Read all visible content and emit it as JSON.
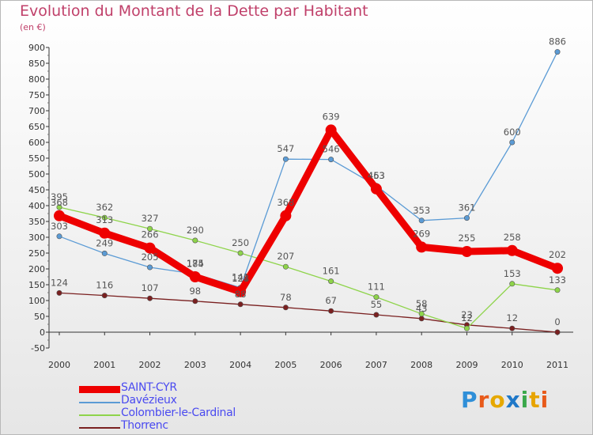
{
  "header": {
    "title": "Evolution du Montant de la Dette par Habitant",
    "subtitle": "(en €)"
  },
  "logo": {
    "text": "Proxiti",
    "colors": [
      "#2f8fd8",
      "#e85a1a",
      "#e6a800",
      "#1f78c8",
      "#3aa84a",
      "#e7a400",
      "#e85a1a"
    ]
  },
  "chart_data": {
    "type": "line",
    "categories": [
      "2000",
      "2001",
      "2002",
      "2003",
      "2004",
      "2005",
      "2006",
      "2007",
      "2008",
      "2009",
      "2010",
      "2011"
    ],
    "ylim": [
      -50,
      900
    ],
    "yticks": [
      -50,
      0,
      50,
      100,
      150,
      200,
      250,
      300,
      350,
      400,
      450,
      500,
      550,
      600,
      650,
      700,
      750,
      800,
      850,
      900
    ],
    "grid": false,
    "legend_position": "bottom-left",
    "series": [
      {
        "name": "Thorrenc",
        "color": "#7a2020",
        "values": [
          124,
          116,
          107,
          98,
          88,
          78,
          67,
          55,
          43,
          23,
          12,
          0
        ],
        "labels": [
          "124",
          "116",
          "107",
          "98",
          "88",
          "78",
          "67",
          "55",
          "43",
          "23",
          "12",
          "0"
        ]
      },
      {
        "name": "Colombier-le-Cardinal",
        "color": "#8ed44a",
        "values": [
          395,
          362,
          327,
          290,
          250,
          207,
          161,
          111,
          58,
          12,
          153,
          133
        ],
        "labels": [
          "395",
          "362",
          "327",
          "290",
          "250",
          "207",
          "161",
          "111",
          "58",
          "12",
          "153",
          "133"
        ]
      },
      {
        "name": "Davézieux",
        "color": "#5b9bd5",
        "values": [
          303,
          249,
          205,
          184,
          141,
          547,
          546,
          463,
          353,
          361,
          600,
          886
        ],
        "labels": [
          "303",
          "249",
          "205",
          "184",
          "141",
          "547",
          "546",
          "463",
          "353",
          "361",
          "600",
          "886"
        ]
      },
      {
        "name": "SAINT-CYR",
        "color": "#ee0000",
        "values": [
          368,
          313,
          266,
          175,
          128,
          368,
          639,
          453,
          269,
          255,
          258,
          202
        ],
        "labels": [
          "368",
          "313",
          "266",
          "175",
          "128",
          "368",
          "639",
          "453",
          "269",
          "255",
          "258",
          "202"
        ]
      }
    ],
    "legend": [
      "SAINT-CYR",
      "Davézieux",
      "Colombier-le-Cardinal",
      "Thorrenc"
    ]
  }
}
